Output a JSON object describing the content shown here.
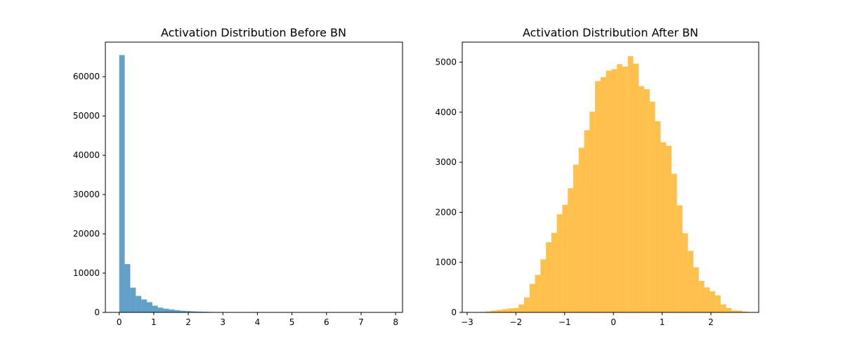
{
  "chart_data": [
    {
      "type": "bar",
      "title": "Activation Distribution Before BN",
      "xlabel": "",
      "ylabel": "",
      "color": "#1f77b4",
      "opacity": 0.7,
      "xlim": [
        -0.4,
        8.2
      ],
      "ylim": [
        0,
        68800
      ],
      "xticks": [
        "0",
        "1",
        "2",
        "3",
        "4",
        "5",
        "6",
        "7",
        "8"
      ],
      "yticks": [
        "0",
        "10000",
        "20000",
        "30000",
        "40000",
        "50000",
        "60000"
      ],
      "bin_width": 0.16,
      "bin_start": 0.0,
      "values": [
        65500,
        12300,
        6300,
        4200,
        3300,
        2600,
        1700,
        1200,
        950,
        750,
        580,
        430,
        340,
        270,
        210,
        170,
        130,
        100,
        80,
        60,
        50,
        40,
        30,
        24,
        18,
        14,
        11,
        9,
        7,
        5,
        4,
        3,
        3,
        2,
        2,
        2,
        1,
        1,
        1,
        1,
        1,
        1,
        1,
        1,
        1,
        1,
        1,
        1,
        1,
        1
      ],
      "grid": false,
      "legend": "none"
    },
    {
      "type": "bar",
      "title": "Activation Distribution After BN",
      "xlabel": "",
      "ylabel": "",
      "color": "#ffa500",
      "opacity": 0.7,
      "xlim": [
        -3.1,
        2.98
      ],
      "ylim": [
        0,
        5400
      ],
      "xticks": [
        "−3",
        "−2",
        "−1",
        "0",
        "1",
        "2"
      ],
      "yticks": [
        "0",
        "1000",
        "2000",
        "3000",
        "4000",
        "5000"
      ],
      "bin_width": 0.112,
      "bin_start": -2.84,
      "values": [
        5,
        10,
        20,
        35,
        50,
        65,
        80,
        90,
        160,
        300,
        570,
        750,
        1060,
        1400,
        1590,
        1960,
        2150,
        2480,
        2950,
        3290,
        3640,
        4010,
        4620,
        4700,
        4830,
        4860,
        4960,
        4910,
        5120,
        4970,
        4520,
        4460,
        4210,
        3820,
        3400,
        3330,
        2770,
        2140,
        1580,
        1230,
        900,
        630,
        500,
        420,
        340,
        160,
        90,
        40,
        35,
        15
      ],
      "grid": false,
      "legend": "none"
    }
  ]
}
